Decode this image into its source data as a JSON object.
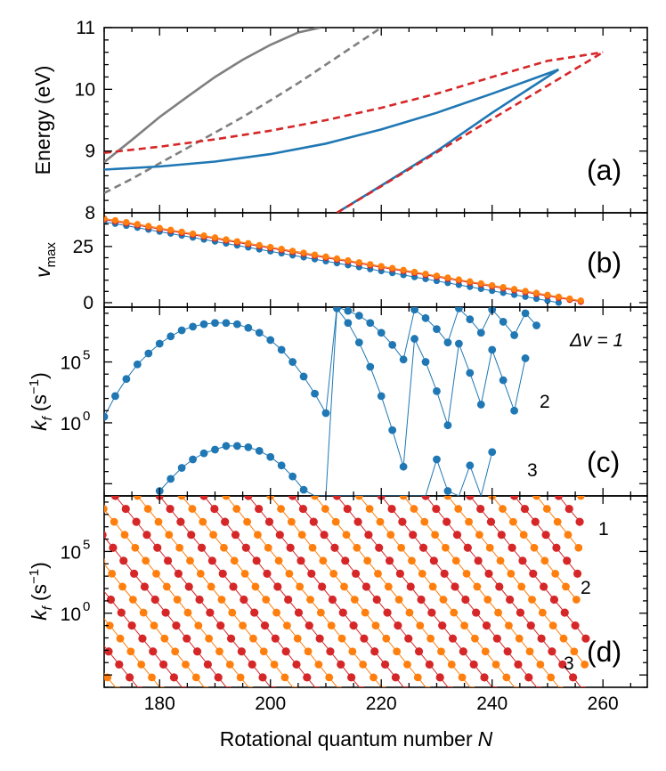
{
  "figure": {
    "xlabel": "Rotational quantum number",
    "xlabel_symbol": "N",
    "xlim": [
      170,
      268
    ],
    "xticks": [
      180,
      200,
      220,
      240,
      260
    ]
  },
  "chart_data": [
    {
      "panel": "(a)",
      "type": "line",
      "ylabel": "Energy (eV)",
      "ylim": [
        8,
        11
      ],
      "yticks": [
        "8",
        "9",
        "10",
        "11"
      ],
      "series": [
        {
          "color": "#7f7f7f",
          "style": "solid",
          "x": [
            170,
            175,
            180,
            185,
            190,
            195,
            200,
            205,
            209
          ],
          "y": [
            8.82,
            9.18,
            9.55,
            9.88,
            10.2,
            10.48,
            10.72,
            10.92,
            11.0
          ]
        },
        {
          "color": "#7f7f7f",
          "style": "dashed",
          "x": [
            170,
            175,
            180,
            185,
            190,
            195,
            200,
            205,
            210,
            215,
            220
          ],
          "y": [
            8.32,
            8.55,
            8.8,
            9.05,
            9.3,
            9.55,
            9.82,
            10.1,
            10.4,
            10.7,
            11.0
          ]
        },
        {
          "color": "#1f77b4",
          "style": "solid",
          "x": [
            170,
            180,
            190,
            200,
            210,
            220,
            230,
            240,
            252
          ],
          "y": [
            8.7,
            8.75,
            8.83,
            8.95,
            9.12,
            9.35,
            9.62,
            9.93,
            10.32
          ]
        },
        {
          "color": "#1f77b4",
          "style": "solid",
          "x": [
            212,
            220,
            230,
            240,
            252
          ],
          "y": [
            8.0,
            8.44,
            9.0,
            9.62,
            10.32
          ]
        },
        {
          "color": "#d62728",
          "style": "dashed",
          "x": [
            170,
            180,
            190,
            200,
            210,
            220,
            230,
            240,
            250,
            260
          ],
          "y": [
            8.97,
            9.07,
            9.19,
            9.33,
            9.5,
            9.7,
            9.93,
            10.2,
            10.46,
            10.6
          ]
        },
        {
          "color": "#d62728",
          "style": "dashed",
          "x": [
            212,
            220,
            230,
            240,
            250,
            260
          ],
          "y": [
            8.0,
            8.43,
            8.98,
            9.52,
            10.06,
            10.6
          ]
        }
      ]
    },
    {
      "panel": "(b)",
      "type": "scatter",
      "ylabel_base": "v",
      "ylabel_sub": "max",
      "ylim": [
        -2,
        40
      ],
      "yticks": [
        "0",
        "25"
      ],
      "series": [
        {
          "color": "#1f77b4",
          "x_start": 170,
          "x_end": 252,
          "y_start": 36,
          "y_end": 0
        },
        {
          "color": "#d62728",
          "x_start": 170,
          "x_end": 257,
          "y_start": 37,
          "y_end": 0
        },
        {
          "color": "#ff7f0e",
          "x_start": 170,
          "x_end": 257,
          "y_start": 37.5,
          "y_end": 0.5
        }
      ]
    },
    {
      "panel": "(c)",
      "type": "line",
      "ylabel_base": "k",
      "ylabel_sub": "f",
      "ylabel_unit_open": "(s",
      "ylabel_unit_exp": "−1",
      "ylabel_unit_close": ")",
      "ylim_log10": [
        -6,
        9.5
      ],
      "yticks": [
        {
          "base": "10",
          "exp": "5",
          "value": 5
        },
        {
          "base": "10",
          "exp": "0",
          "value": 0
        }
      ],
      "annotations": [
        {
          "label": "Δv = 1"
        },
        {
          "label": "2"
        },
        {
          "label": "3"
        }
      ],
      "series": [
        {
          "name": "Δv=1",
          "color": "#1f77b4",
          "x": [
            170,
            172,
            174,
            176,
            178,
            180,
            182,
            184,
            186,
            188,
            190,
            192,
            194,
            196,
            198,
            200,
            202,
            204,
            206,
            208,
            210,
            212,
            214,
            216,
            218,
            220,
            222,
            224,
            226,
            228,
            230,
            232,
            234,
            236,
            238,
            240,
            242,
            244,
            246,
            248
          ],
          "y": [
            0.5,
            2.2,
            3.6,
            4.8,
            5.7,
            6.5,
            7.1,
            7.6,
            7.9,
            8.1,
            8.2,
            8.2,
            8.1,
            7.8,
            7.4,
            6.8,
            6.0,
            5.0,
            3.8,
            2.4,
            0.8,
            9.5,
            9.2,
            8.8,
            8.2,
            7.4,
            6.4,
            5.2,
            9.3,
            8.6,
            7.7,
            6.6,
            9.4,
            8.5,
            7.4,
            9.3,
            8.3,
            7.2,
            9.0,
            8.0
          ]
        },
        {
          "name": "Δv=2",
          "color": "#1f77b4",
          "x": [
            210,
            212,
            214,
            216,
            218,
            220,
            222,
            224,
            226,
            228,
            230,
            232,
            234,
            236,
            238,
            240,
            242,
            244,
            246
          ],
          "y": [
            -6.0,
            9.4,
            8.2,
            6.6,
            4.6,
            2.2,
            -0.6,
            -3.6,
            6.9,
            5.0,
            2.6,
            -0.2,
            6.5,
            4.1,
            1.5,
            6.0,
            3.5,
            1.0,
            5.3
          ]
        },
        {
          "name": "Δv=3",
          "color": "#1f77b4",
          "x": [
            180,
            182,
            184,
            186,
            188,
            190,
            192,
            194,
            196,
            198,
            200,
            202,
            204,
            206,
            208,
            210,
            212,
            214,
            216,
            218,
            220,
            222,
            224,
            226,
            228,
            230,
            232,
            234,
            236,
            238,
            240
          ],
          "y": [
            -5.6,
            -4.6,
            -3.7,
            -3.0,
            -2.5,
            -2.2,
            -1.9,
            -1.9,
            -2.0,
            -2.3,
            -2.8,
            -3.5,
            -4.4,
            -5.5,
            -6.0,
            -6.0,
            -6.0,
            -6.0,
            -6.0,
            -6.0,
            -6.0,
            -6.0,
            -6.0,
            -6.0,
            -6.0,
            -3.0,
            -5.6,
            -6.0,
            -3.5,
            -6.0,
            -2.4
          ]
        }
      ]
    },
    {
      "panel": "(d)",
      "type": "scatter",
      "ylabel_base": "k",
      "ylabel_sub": "f",
      "ylabel_unit_open": "(s",
      "ylabel_unit_exp": "−1",
      "ylabel_unit_close": ")",
      "ylim_log10": [
        -6,
        9.5
      ],
      "yticks": [
        {
          "base": "10",
          "exp": "5",
          "value": 5
        },
        {
          "base": "10",
          "exp": "0",
          "value": 0
        }
      ],
      "annotations": [
        {
          "label": "1"
        },
        {
          "label": "2"
        },
        {
          "label": "3"
        }
      ],
      "series": [
        {
          "color": "#d62728",
          "description_free": true
        },
        {
          "color": "#ff7f0e",
          "description_free": true
        }
      ]
    }
  ],
  "colors": {
    "blue": "#1f77b4",
    "red": "#d62728",
    "orange": "#ff7f0e",
    "gray": "#7f7f7f"
  }
}
